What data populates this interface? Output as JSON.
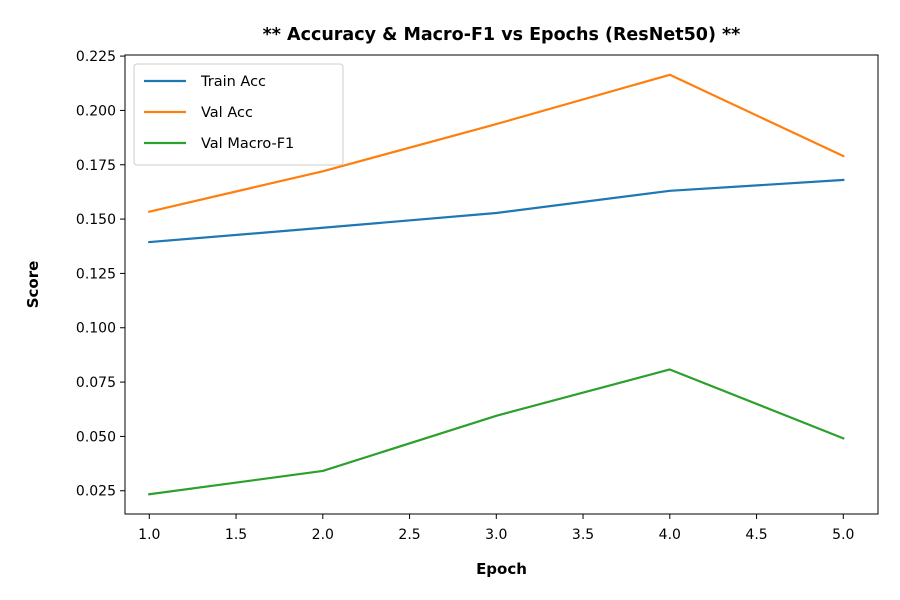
{
  "chart_data": {
    "type": "line",
    "title": "** Accuracy & Macro-F1 vs Epochs (ResNet50) **",
    "xlabel": "Epoch",
    "ylabel": "Score",
    "xlim": [
      0.86,
      5.2
    ],
    "ylim": [
      0.0143,
      0.2255
    ],
    "xticks": [
      1.0,
      1.5,
      2.0,
      2.5,
      3.0,
      3.5,
      4.0,
      4.5,
      5.0
    ],
    "xtick_labels": [
      "1.0",
      "1.5",
      "2.0",
      "2.5",
      "3.0",
      "3.5",
      "4.0",
      "4.5",
      "5.0"
    ],
    "yticks": [
      0.025,
      0.05,
      0.075,
      0.1,
      0.125,
      0.15,
      0.175,
      0.2,
      0.225
    ],
    "ytick_labels": [
      "0.025",
      "0.050",
      "0.075",
      "0.100",
      "0.125",
      "0.150",
      "0.175",
      "0.200",
      "0.225"
    ],
    "grid": false,
    "legend_position": "top-left",
    "x": [
      1,
      2,
      3,
      4,
      5
    ],
    "series": [
      {
        "name": "Train Acc",
        "color": "#1f77b4",
        "values": [
          0.1394,
          0.146,
          0.1528,
          0.163,
          0.168
        ]
      },
      {
        "name": "Val Acc",
        "color": "#ff7f0e",
        "values": [
          0.1534,
          0.172,
          0.1937,
          0.2164,
          0.179
        ]
      },
      {
        "name": "Val Macro-F1",
        "color": "#2ca02c",
        "values": [
          0.0234,
          0.0341,
          0.0595,
          0.0808,
          0.0491
        ]
      }
    ]
  }
}
